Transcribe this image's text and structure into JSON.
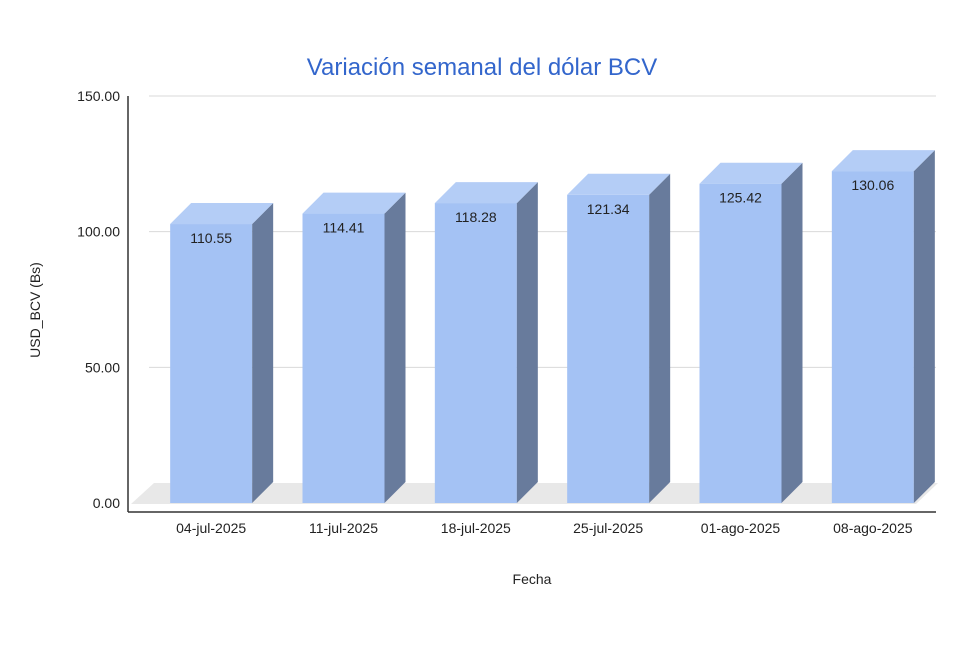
{
  "chart_data": {
    "type": "bar",
    "title": "Variación semanal del dólar BCV",
    "xlabel": "Fecha",
    "ylabel": "USD_BCV (Bs)",
    "categories": [
      "04-jul-2025",
      "11-jul-2025",
      "18-jul-2025",
      "25-jul-2025",
      "01-ago-2025",
      "08-ago-2025"
    ],
    "series": [
      {
        "values": [
          110.55,
          114.41,
          118.28,
          121.34,
          125.42,
          130.06
        ]
      }
    ],
    "data_labels": [
      "110.55",
      "114.41",
      "118.28",
      "121.34",
      "125.42",
      "130.06"
    ],
    "yticks": [
      0,
      50,
      100,
      150
    ],
    "ytick_labels": [
      "0.00",
      "50.00",
      "100.00",
      "150.00"
    ],
    "ylim": [
      0,
      150
    ],
    "grid": true,
    "legend": "none",
    "style_3d": true,
    "colors": {
      "title": "#3366cc",
      "bar_front": "#a4c2f4",
      "bar_top": "#b4cdf6",
      "bar_side": "#687b9c",
      "floor": "#e8e8e8",
      "grid": "#d9d9d9",
      "axis": "#333333",
      "text": "#222222"
    }
  }
}
